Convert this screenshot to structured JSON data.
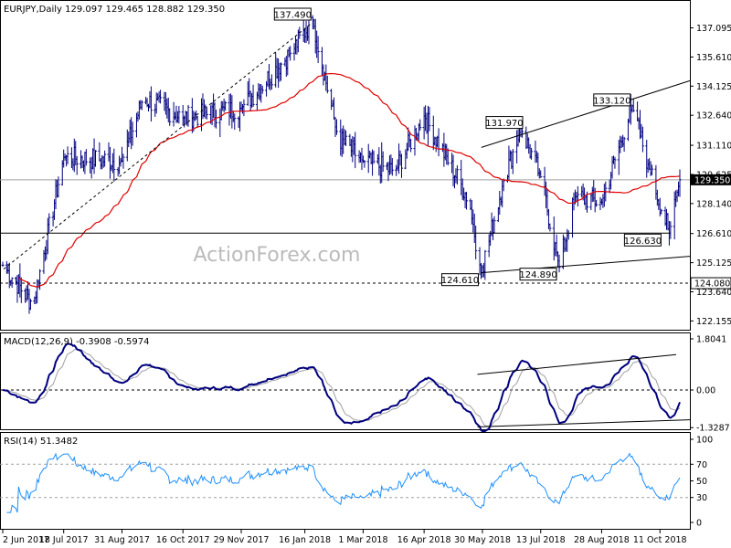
{
  "chart_data": {
    "type": "candlestick",
    "symbol_header": "EURJPY,Daily  129.097 129.465 128.882 129.350",
    "watermark": "ActionForex.com",
    "x_tick_labels": [
      "2 Jun 2017",
      "18 Jul 2017",
      "31 Aug 2017",
      "16 Oct 2017",
      "29 Nov 2017",
      "16 Jan 2018",
      "1 Mar 2018",
      "16 Apr 2018",
      "30 May 2018",
      "13 Jul 2018",
      "28 Aug 2018",
      "11 Oct 2018"
    ],
    "price_panel": {
      "y_ticks": [
        "137.095",
        "135.610",
        "134.125",
        "132.640",
        "131.110",
        "129.625",
        "128.140",
        "126.610",
        "125.125",
        "123.640",
        "122.155"
      ],
      "current_price": "129.350",
      "support_line": "124.080",
      "ma_color": "#e00000",
      "annotations": [
        "137.490",
        "131.970",
        "133.120",
        "124.610",
        "124.890",
        "126.630"
      ],
      "anchors": [
        {
          "date": "2 Jun 2017",
          "close": 125.0
        },
        {
          "date": "25 Jun 2017",
          "close": 123.0
        },
        {
          "date": "18 Jul 2017",
          "close": 130.5
        },
        {
          "date": "31 Aug 2017",
          "close": 130.3
        },
        {
          "date": "16 Sep 2017",
          "close": 133.5
        },
        {
          "date": "16 Oct 2017",
          "close": 132.5
        },
        {
          "date": "29 Nov 2017",
          "close": 133.0
        },
        {
          "date": "5 Jan 2018",
          "close": 135.8
        },
        {
          "date": "22 Jan 2018",
          "close": 137.49
        },
        {
          "date": "10 Feb 2018",
          "close": 131.5
        },
        {
          "date": "1 Mar 2018",
          "close": 130.3
        },
        {
          "date": "25 Mar 2018",
          "close": 129.8
        },
        {
          "date": "16 Apr 2018",
          "close": 132.6
        },
        {
          "date": "20 May 2018",
          "close": 128.3
        },
        {
          "date": "29 May 2018",
          "close": 124.61
        },
        {
          "date": "15 Jun 2018",
          "close": 129.3
        },
        {
          "date": "28 Jun 2018",
          "close": 131.97
        },
        {
          "date": "13 Jul 2018",
          "close": 129.5
        },
        {
          "date": "27 Jul 2018",
          "close": 124.89
        },
        {
          "date": "8 Aug 2018",
          "close": 128.5
        },
        {
          "date": "28 Aug 2018",
          "close": 128.2
        },
        {
          "date": "20 Sep 2018",
          "close": 133.12
        },
        {
          "date": "3 Oct 2018",
          "close": 129.9
        },
        {
          "date": "18 Oct 2018",
          "close": 126.63
        },
        {
          "date": "26 Oct 2018",
          "close": 129.35
        }
      ]
    },
    "macd_panel": {
      "header": "MACD(12,26,9) -0.3908 -0.5974",
      "y_ticks": [
        "1.8041",
        "0.00",
        "-1.3287"
      ],
      "macd_color": "#00007f",
      "signal_color": "#a0a0a0"
    },
    "rsi_panel": {
      "header": "RSI(14) 51.3482",
      "y_ticks": [
        "100",
        "70",
        "50",
        "30",
        "0"
      ],
      "levels": [
        70,
        30
      ]
    }
  }
}
